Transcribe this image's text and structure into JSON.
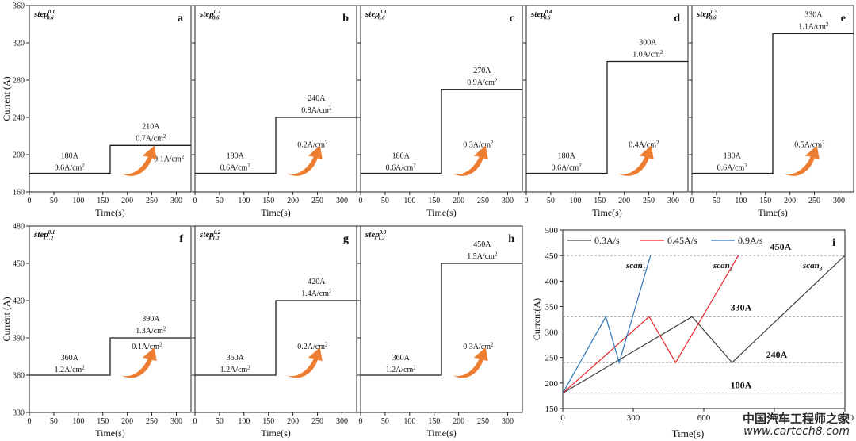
{
  "colors": {
    "line": "#1a1a1a",
    "axis": "#222222",
    "arrow": "#ed7d31",
    "s1": "#404040",
    "s2": "#e8262b",
    "s3": "#2e75b6",
    "ref": "#888888"
  },
  "watermark": {
    "line1": "中国汽车工程师之家",
    "line2": "www.cartech8.com"
  },
  "chart_data": [
    {
      "id": "a",
      "type": "line",
      "panel_label": "a",
      "step_label": {
        "base": "step",
        "sup": "0.1",
        "sub": "0.6"
      },
      "xlabel": "Time(s)",
      "ylabel": "Current (A)",
      "xlim": [
        0,
        330
      ],
      "ylim": [
        160,
        360
      ],
      "xticks": [
        0,
        50,
        100,
        150,
        200,
        250,
        300
      ],
      "yticks": [
        160,
        200,
        240,
        280,
        320,
        360
      ],
      "x": [
        0,
        165,
        165,
        330
      ],
      "y": [
        180,
        180,
        210,
        210
      ],
      "labels": {
        "before_current": "180A",
        "before_density": "0.6A/cm²",
        "after_current": "210A",
        "after_density": "0.7A/cm²",
        "increment": "0.1A/cm²"
      }
    },
    {
      "id": "b",
      "type": "line",
      "panel_label": "b",
      "step_label": {
        "base": "step",
        "sup": "0.2",
        "sub": "0.6"
      },
      "xlabel": "Time(s)",
      "ylabel": "",
      "xlim": [
        0,
        330
      ],
      "ylim": [
        160,
        360
      ],
      "xticks": [
        0,
        50,
        100,
        150,
        200,
        250,
        300
      ],
      "yticks": [],
      "x": [
        0,
        165,
        165,
        330
      ],
      "y": [
        180,
        180,
        240,
        240
      ],
      "labels": {
        "before_current": "180A",
        "before_density": "0.6A/cm²",
        "after_current": "240A",
        "after_density": "0.8A/cm²",
        "increment": "0.2A/cm²"
      }
    },
    {
      "id": "c",
      "type": "line",
      "panel_label": "c",
      "step_label": {
        "base": "step",
        "sup": "0.3",
        "sub": "0.6"
      },
      "xlabel": "Time(s)",
      "ylabel": "",
      "xlim": [
        0,
        330
      ],
      "ylim": [
        160,
        360
      ],
      "xticks": [
        0,
        50,
        100,
        150,
        200,
        250,
        300
      ],
      "yticks": [],
      "x": [
        0,
        165,
        165,
        330
      ],
      "y": [
        180,
        180,
        270,
        270
      ],
      "labels": {
        "before_current": "180A",
        "before_density": "0.6A/cm²",
        "after_current": "270A",
        "after_density": "0.9A/cm²",
        "increment": "0.3A/cm²"
      }
    },
    {
      "id": "d",
      "type": "line",
      "panel_label": "d",
      "step_label": {
        "base": "step",
        "sup": "0.4",
        "sub": "0.6"
      },
      "xlabel": "Time(s)",
      "ylabel": "",
      "xlim": [
        0,
        330
      ],
      "ylim": [
        160,
        360
      ],
      "xticks": [
        0,
        50,
        100,
        150,
        200,
        250,
        300
      ],
      "yticks": [],
      "x": [
        0,
        165,
        165,
        330
      ],
      "y": [
        180,
        180,
        300,
        300
      ],
      "labels": {
        "before_current": "180A",
        "before_density": "0.6A/cm²",
        "after_current": "300A",
        "after_density": "1.0A/cm²",
        "increment": "0.4A/cm²"
      }
    },
    {
      "id": "e",
      "type": "line",
      "panel_label": "e",
      "step_label": {
        "base": "step",
        "sup": "0.5",
        "sub": "0.6"
      },
      "xlabel": "Time(s)",
      "ylabel": "",
      "xlim": [
        0,
        330
      ],
      "ylim": [
        160,
        360
      ],
      "xticks": [
        0,
        50,
        100,
        150,
        200,
        250,
        300
      ],
      "yticks": [],
      "x": [
        0,
        165,
        165,
        330
      ],
      "y": [
        180,
        180,
        330,
        330
      ],
      "labels": {
        "before_current": "180A",
        "before_density": "0.6A/cm²",
        "after_current": "330A",
        "after_density": "1.1A/cm²",
        "increment": "0.5A/cm²"
      }
    },
    {
      "id": "f",
      "type": "line",
      "panel_label": "f",
      "step_label": {
        "base": "step",
        "sup": "0.1",
        "sub": "1.2"
      },
      "xlabel": "Time(s)",
      "ylabel": "Current (A)",
      "xlim": [
        0,
        330
      ],
      "ylim": [
        330,
        480
      ],
      "xticks": [
        0,
        50,
        100,
        150,
        200,
        250,
        300
      ],
      "yticks": [
        330,
        360,
        390,
        420,
        450,
        480
      ],
      "x": [
        0,
        165,
        165,
        330
      ],
      "y": [
        360,
        360,
        390,
        390
      ],
      "labels": {
        "before_current": "360A",
        "before_density": "1.2A/cm²",
        "after_current": "390A",
        "after_density": "1.3A/cm²",
        "increment": "0.1A/cm²"
      }
    },
    {
      "id": "g",
      "type": "line",
      "panel_label": "g",
      "step_label": {
        "base": "step",
        "sup": "0.2",
        "sub": "1.2"
      },
      "xlabel": "Time(s)",
      "ylabel": "",
      "xlim": [
        0,
        330
      ],
      "ylim": [
        330,
        480
      ],
      "xticks": [
        0,
        50,
        100,
        150,
        200,
        250,
        300
      ],
      "yticks": [],
      "x": [
        0,
        165,
        165,
        330
      ],
      "y": [
        360,
        360,
        420,
        420
      ],
      "labels": {
        "before_current": "360A",
        "before_density": "1.2A/cm²",
        "after_current": "420A",
        "after_density": "1.4A/cm²",
        "increment": "0.2A/cm²"
      }
    },
    {
      "id": "h",
      "type": "line",
      "panel_label": "h",
      "step_label": {
        "base": "step",
        "sup": "0.3",
        "sub": "1.2"
      },
      "xlabel": "Time(s)",
      "ylabel": "",
      "xlim": [
        0,
        330
      ],
      "ylim": [
        330,
        480
      ],
      "xticks": [
        0,
        50,
        100,
        150,
        200,
        250,
        300
      ],
      "yticks": [],
      "x": [
        0,
        165,
        165,
        330
      ],
      "y": [
        360,
        360,
        450,
        450
      ],
      "labels": {
        "before_current": "360A",
        "before_density": "1.2A/cm²",
        "after_current": "450A",
        "after_density": "1.5A/cm²",
        "increment": "0.3A/cm²"
      }
    },
    {
      "id": "i",
      "type": "line",
      "panel_label": "i",
      "xlabel": "Time(s)",
      "ylabel": "Current(A)",
      "xlim": [
        0,
        1200
      ],
      "ylim": [
        150,
        500
      ],
      "xticks": [
        0,
        300,
        600,
        900,
        1200,
        1500
      ],
      "xtick_labels": [
        "0",
        "300",
        "600",
        "900",
        "1200",
        "1500"
      ],
      "yticks": [
        150,
        200,
        250,
        300,
        350,
        400,
        450,
        500
      ],
      "legend": "top-left",
      "series": [
        {
          "name": "0.3A/s",
          "color": "#404040",
          "x": [
            0,
            550,
            720,
            1200
          ],
          "y": [
            180,
            330,
            240,
            450
          ]
        },
        {
          "name": "0.45A/s",
          "color": "#e8262b",
          "x": [
            0,
            367,
            480,
            747
          ],
          "y": [
            180,
            330,
            240,
            450
          ]
        },
        {
          "name": "0.9A/s",
          "color": "#2e75b6",
          "x": [
            0,
            183,
            240,
            373
          ],
          "y": [
            180,
            330,
            240,
            450
          ]
        }
      ],
      "reference_lines": [
        {
          "y": 180,
          "label": "180A"
        },
        {
          "y": 240,
          "label": "240A"
        },
        {
          "y": 330,
          "label": "330A"
        },
        {
          "y": 450,
          "label": "450A"
        }
      ],
      "scan_labels": [
        {
          "base": "scan",
          "sub": "1",
          "x": 300,
          "y": 420
        },
        {
          "base": "scan",
          "sub": "2",
          "x": 760,
          "y": 420
        },
        {
          "base": "scan",
          "sub": "3",
          "x": 1140,
          "y": 420
        }
      ]
    }
  ]
}
